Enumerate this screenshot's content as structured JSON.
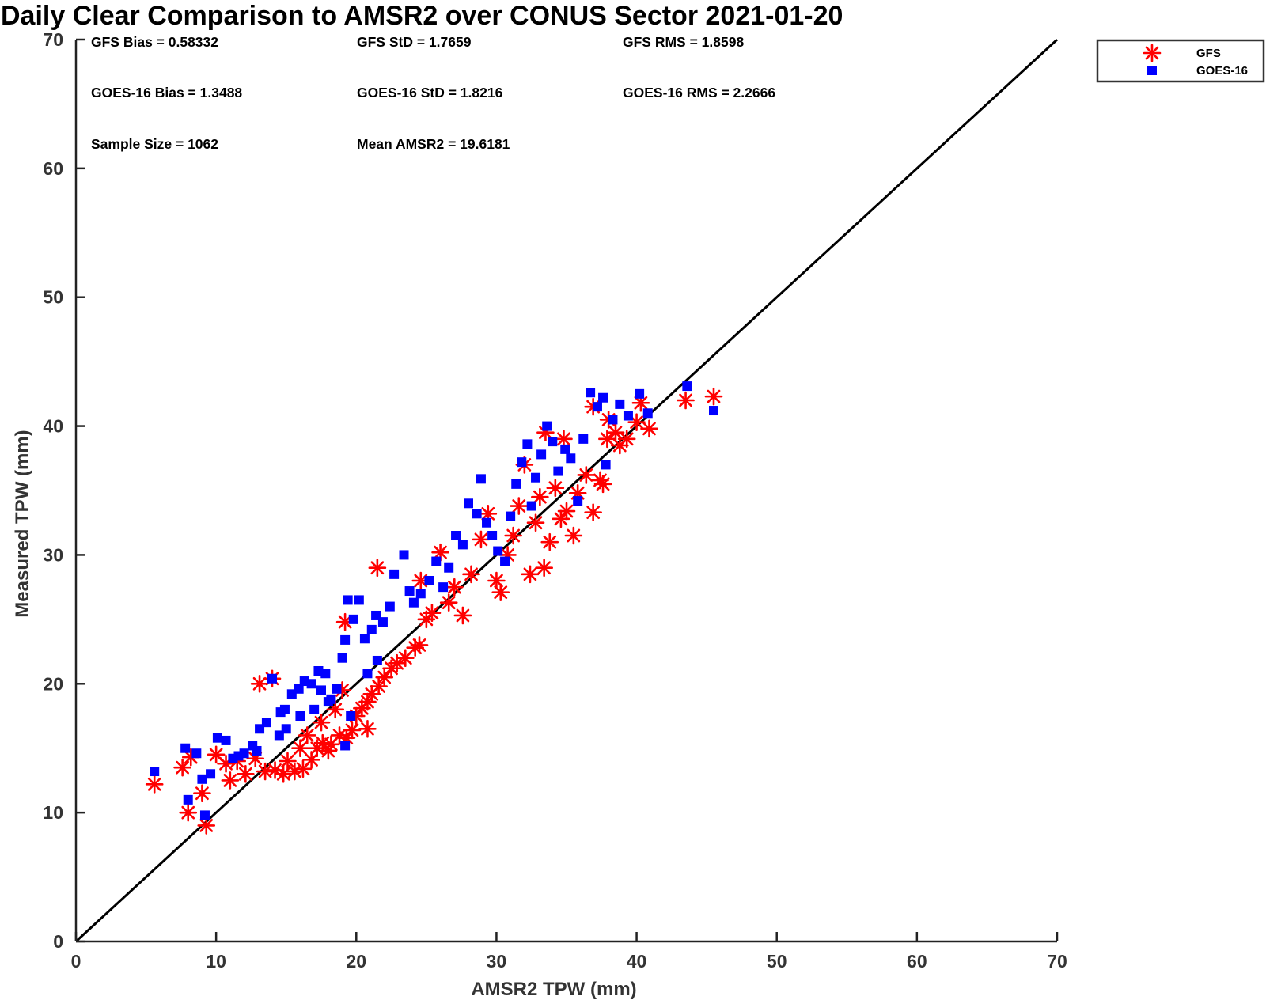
{
  "chart_data": {
    "type": "scatter",
    "title": "Daily Clear Comparison to AMSR2 over CONUS Sector 2021-01-20",
    "xlabel": "AMSR2 TPW (mm)",
    "ylabel": "Measured TPW (mm)",
    "xlim": [
      0,
      70
    ],
    "ylim": [
      0,
      70
    ],
    "xticks": [
      0,
      10,
      20,
      30,
      40,
      50,
      60,
      70
    ],
    "yticks": [
      0,
      10,
      20,
      30,
      40,
      50,
      60,
      70
    ],
    "grid": false,
    "legend_position": "top-right outside",
    "reference_line": {
      "from": [
        0,
        0
      ],
      "to": [
        70,
        70
      ],
      "color": "#000000"
    },
    "stats": [
      "GFS Bias = 0.58332",
      "GFS StD = 1.7659",
      "GFS RMS = 1.8598",
      "GOES-16 Bias = 1.3488",
      "GOES-16 StD = 1.8216",
      "GOES-16 RMS = 2.2666",
      "Sample Size = 1062",
      "Mean AMSR2 = 19.6181"
    ],
    "series": [
      {
        "name": "GFS",
        "marker": "asterisk",
        "color": "#ff0000",
        "points": [
          [
            5.6,
            12.2
          ],
          [
            8.0,
            10.0
          ],
          [
            9.3,
            9.0
          ],
          [
            7.6,
            13.5
          ],
          [
            8.2,
            14.3
          ],
          [
            9.0,
            11.5
          ],
          [
            10.0,
            14.5
          ],
          [
            10.7,
            13.8
          ],
          [
            11.0,
            12.5
          ],
          [
            11.5,
            14.0
          ],
          [
            12.1,
            13.0
          ],
          [
            12.8,
            14.2
          ],
          [
            13.1,
            20.0
          ],
          [
            14.0,
            20.4
          ],
          [
            13.5,
            13.2
          ],
          [
            14.2,
            13.3
          ],
          [
            14.8,
            13.0
          ],
          [
            15.1,
            14.0
          ],
          [
            15.6,
            13.2
          ],
          [
            16.0,
            15.0
          ],
          [
            16.2,
            13.4
          ],
          [
            16.8,
            14.1
          ],
          [
            17.2,
            15.0
          ],
          [
            17.6,
            15.4
          ],
          [
            18.2,
            15.3
          ],
          [
            18.8,
            16.0
          ],
          [
            19.3,
            15.8
          ],
          [
            19.7,
            16.4
          ],
          [
            19.2,
            24.8
          ],
          [
            20.0,
            17.5
          ],
          [
            20.4,
            18.1
          ],
          [
            20.8,
            18.6
          ],
          [
            21.1,
            19.2
          ],
          [
            21.6,
            19.8
          ],
          [
            22.0,
            20.5
          ],
          [
            22.5,
            21.2
          ],
          [
            21.5,
            29.0
          ],
          [
            22.9,
            21.6
          ],
          [
            23.5,
            22.0
          ],
          [
            24.2,
            22.8
          ],
          [
            24.5,
            23.0
          ],
          [
            24.6,
            28.0
          ],
          [
            25.0,
            25.0
          ],
          [
            25.4,
            25.5
          ],
          [
            26.0,
            30.2
          ],
          [
            26.6,
            26.3
          ],
          [
            27.0,
            27.5
          ],
          [
            27.6,
            25.3
          ],
          [
            28.2,
            28.5
          ],
          [
            28.9,
            31.2
          ],
          [
            29.4,
            33.2
          ],
          [
            30.0,
            28.0
          ],
          [
            30.3,
            27.1
          ],
          [
            30.8,
            30.0
          ],
          [
            31.2,
            31.5
          ],
          [
            31.6,
            33.8
          ],
          [
            32.0,
            37.0
          ],
          [
            32.4,
            28.5
          ],
          [
            32.8,
            32.5
          ],
          [
            33.1,
            34.5
          ],
          [
            33.4,
            29.0
          ],
          [
            33.8,
            31.0
          ],
          [
            34.2,
            35.2
          ],
          [
            34.6,
            32.8
          ],
          [
            35.0,
            33.4
          ],
          [
            35.5,
            31.5
          ],
          [
            35.8,
            34.8
          ],
          [
            36.4,
            36.2
          ],
          [
            36.9,
            33.3
          ],
          [
            37.4,
            35.8
          ],
          [
            37.6,
            35.5
          ],
          [
            37.9,
            39.0
          ],
          [
            36.9,
            41.5
          ],
          [
            38.0,
            40.5
          ],
          [
            38.8,
            38.5
          ],
          [
            39.3,
            39.0
          ],
          [
            40.0,
            40.3
          ],
          [
            40.3,
            41.8
          ],
          [
            40.9,
            39.8
          ],
          [
            43.5,
            42.0
          ],
          [
            45.5,
            42.3
          ],
          [
            33.5,
            39.5
          ],
          [
            34.8,
            39.0
          ],
          [
            38.5,
            39.5
          ],
          [
            16.5,
            16.0
          ],
          [
            17.5,
            17.0
          ],
          [
            18.5,
            18.0
          ],
          [
            19.0,
            19.5
          ],
          [
            18.0,
            14.8
          ],
          [
            20.8,
            16.5
          ]
        ]
      },
      {
        "name": "GOES-16",
        "marker": "square",
        "color": "#0000ff",
        "points": [
          [
            5.6,
            13.2
          ],
          [
            8.0,
            11.0
          ],
          [
            9.2,
            9.8
          ],
          [
            7.8,
            15.0
          ],
          [
            8.6,
            14.6
          ],
          [
            9.0,
            12.6
          ],
          [
            9.6,
            13.0
          ],
          [
            10.1,
            15.8
          ],
          [
            10.7,
            15.6
          ],
          [
            11.2,
            14.2
          ],
          [
            12.0,
            14.6
          ],
          [
            12.6,
            15.2
          ],
          [
            13.1,
            16.5
          ],
          [
            13.6,
            17.0
          ],
          [
            14.0,
            20.4
          ],
          [
            14.6,
            17.8
          ],
          [
            14.9,
            18.0
          ],
          [
            15.4,
            19.2
          ],
          [
            15.9,
            19.6
          ],
          [
            16.3,
            20.2
          ],
          [
            16.8,
            20.0
          ],
          [
            17.3,
            21.0
          ],
          [
            17.8,
            20.8
          ],
          [
            18.0,
            18.6
          ],
          [
            18.6,
            19.6
          ],
          [
            19.0,
            22.0
          ],
          [
            19.2,
            23.4
          ],
          [
            19.4,
            26.5
          ],
          [
            19.8,
            25.0
          ],
          [
            20.2,
            26.5
          ],
          [
            20.6,
            23.5
          ],
          [
            21.1,
            24.2
          ],
          [
            21.4,
            25.3
          ],
          [
            21.9,
            24.8
          ],
          [
            22.4,
            26.0
          ],
          [
            22.7,
            28.5
          ],
          [
            23.4,
            30.0
          ],
          [
            23.8,
            27.2
          ],
          [
            24.1,
            26.3
          ],
          [
            24.6,
            27.0
          ],
          [
            25.2,
            28.0
          ],
          [
            25.7,
            29.5
          ],
          [
            26.2,
            27.5
          ],
          [
            26.6,
            29.0
          ],
          [
            27.1,
            31.5
          ],
          [
            27.6,
            30.8
          ],
          [
            28.0,
            34.0
          ],
          [
            28.6,
            33.2
          ],
          [
            28.9,
            35.9
          ],
          [
            29.3,
            32.5
          ],
          [
            29.7,
            31.5
          ],
          [
            30.1,
            30.3
          ],
          [
            30.6,
            29.5
          ],
          [
            31.0,
            33.0
          ],
          [
            31.4,
            35.5
          ],
          [
            31.8,
            37.2
          ],
          [
            32.2,
            38.6
          ],
          [
            32.5,
            33.8
          ],
          [
            32.8,
            36.0
          ],
          [
            33.2,
            37.8
          ],
          [
            33.6,
            40.0
          ],
          [
            34.0,
            38.8
          ],
          [
            34.4,
            36.5
          ],
          [
            34.9,
            38.2
          ],
          [
            35.3,
            37.5
          ],
          [
            35.8,
            34.2
          ],
          [
            36.2,
            39.0
          ],
          [
            36.7,
            42.6
          ],
          [
            37.2,
            41.5
          ],
          [
            37.6,
            42.2
          ],
          [
            37.8,
            37.0
          ],
          [
            38.3,
            40.5
          ],
          [
            38.8,
            41.7
          ],
          [
            39.4,
            40.8
          ],
          [
            40.2,
            42.5
          ],
          [
            40.8,
            41.0
          ],
          [
            43.6,
            43.1
          ],
          [
            45.5,
            41.2
          ],
          [
            17.0,
            18.0
          ],
          [
            18.2,
            18.8
          ],
          [
            15.0,
            16.5
          ],
          [
            16.0,
            17.5
          ],
          [
            19.6,
            17.5
          ],
          [
            20.8,
            20.8
          ],
          [
            21.5,
            21.8
          ],
          [
            11.6,
            14.4
          ],
          [
            12.9,
            14.8
          ],
          [
            19.2,
            15.2
          ],
          [
            14.5,
            16.0
          ],
          [
            17.5,
            19.5
          ]
        ]
      }
    ]
  }
}
